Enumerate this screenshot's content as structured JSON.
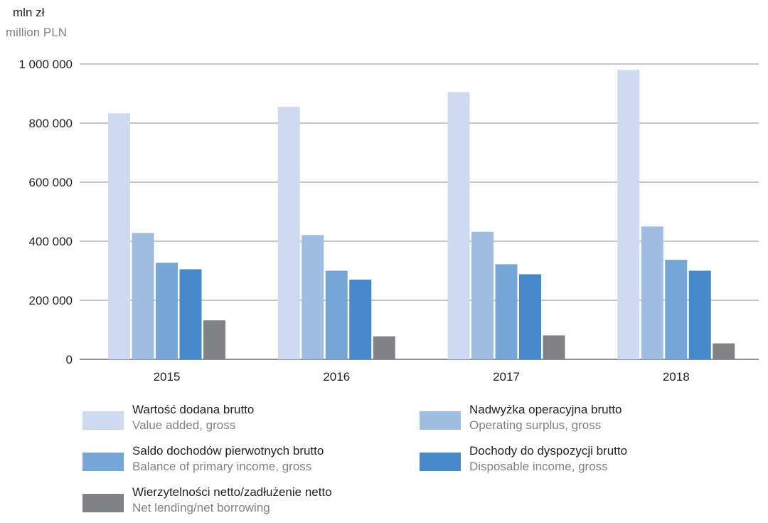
{
  "chart_data": {
    "type": "bar",
    "unit_label": "mln zł",
    "unit_label_en": "million PLN",
    "categories": [
      "2015",
      "2016",
      "2017",
      "2018"
    ],
    "ylim": [
      0,
      1000000
    ],
    "yticks": [
      0,
      200000,
      400000,
      600000,
      800000,
      1000000
    ],
    "ytick_labels": [
      "0",
      "200 000",
      "400 000",
      "600 000",
      "800 000",
      "1 000 000"
    ],
    "grid": true,
    "legend_position": "bottom",
    "series": [
      {
        "name": "Wartość dodana brutto",
        "name_en": "Value added, gross",
        "color": "#cddaf0",
        "values": [
          833000,
          855000,
          905000,
          980000
        ]
      },
      {
        "name": "Nadwyżka operacyjna brutto",
        "name_en": "Operating surplus, gross",
        "color": "#a0bde2",
        "values": [
          428000,
          421000,
          432000,
          450000
        ]
      },
      {
        "name": "Saldo dochodów pierwotnych brutto",
        "name_en": "Balance of primary income, gross",
        "color": "#76a5d8",
        "values": [
          327000,
          300000,
          322000,
          337000
        ]
      },
      {
        "name": "Dochody do dyspozycji brutto",
        "name_en": "Disposable income, gross",
        "color": "#4589cb",
        "values": [
          305000,
          270000,
          288000,
          300000
        ]
      },
      {
        "name": "Wierzytelności netto/zadłużenie netto",
        "name_en": "Net lending/net borrowing",
        "color": "#818285",
        "values": [
          132000,
          78000,
          81000,
          54000
        ]
      }
    ]
  }
}
